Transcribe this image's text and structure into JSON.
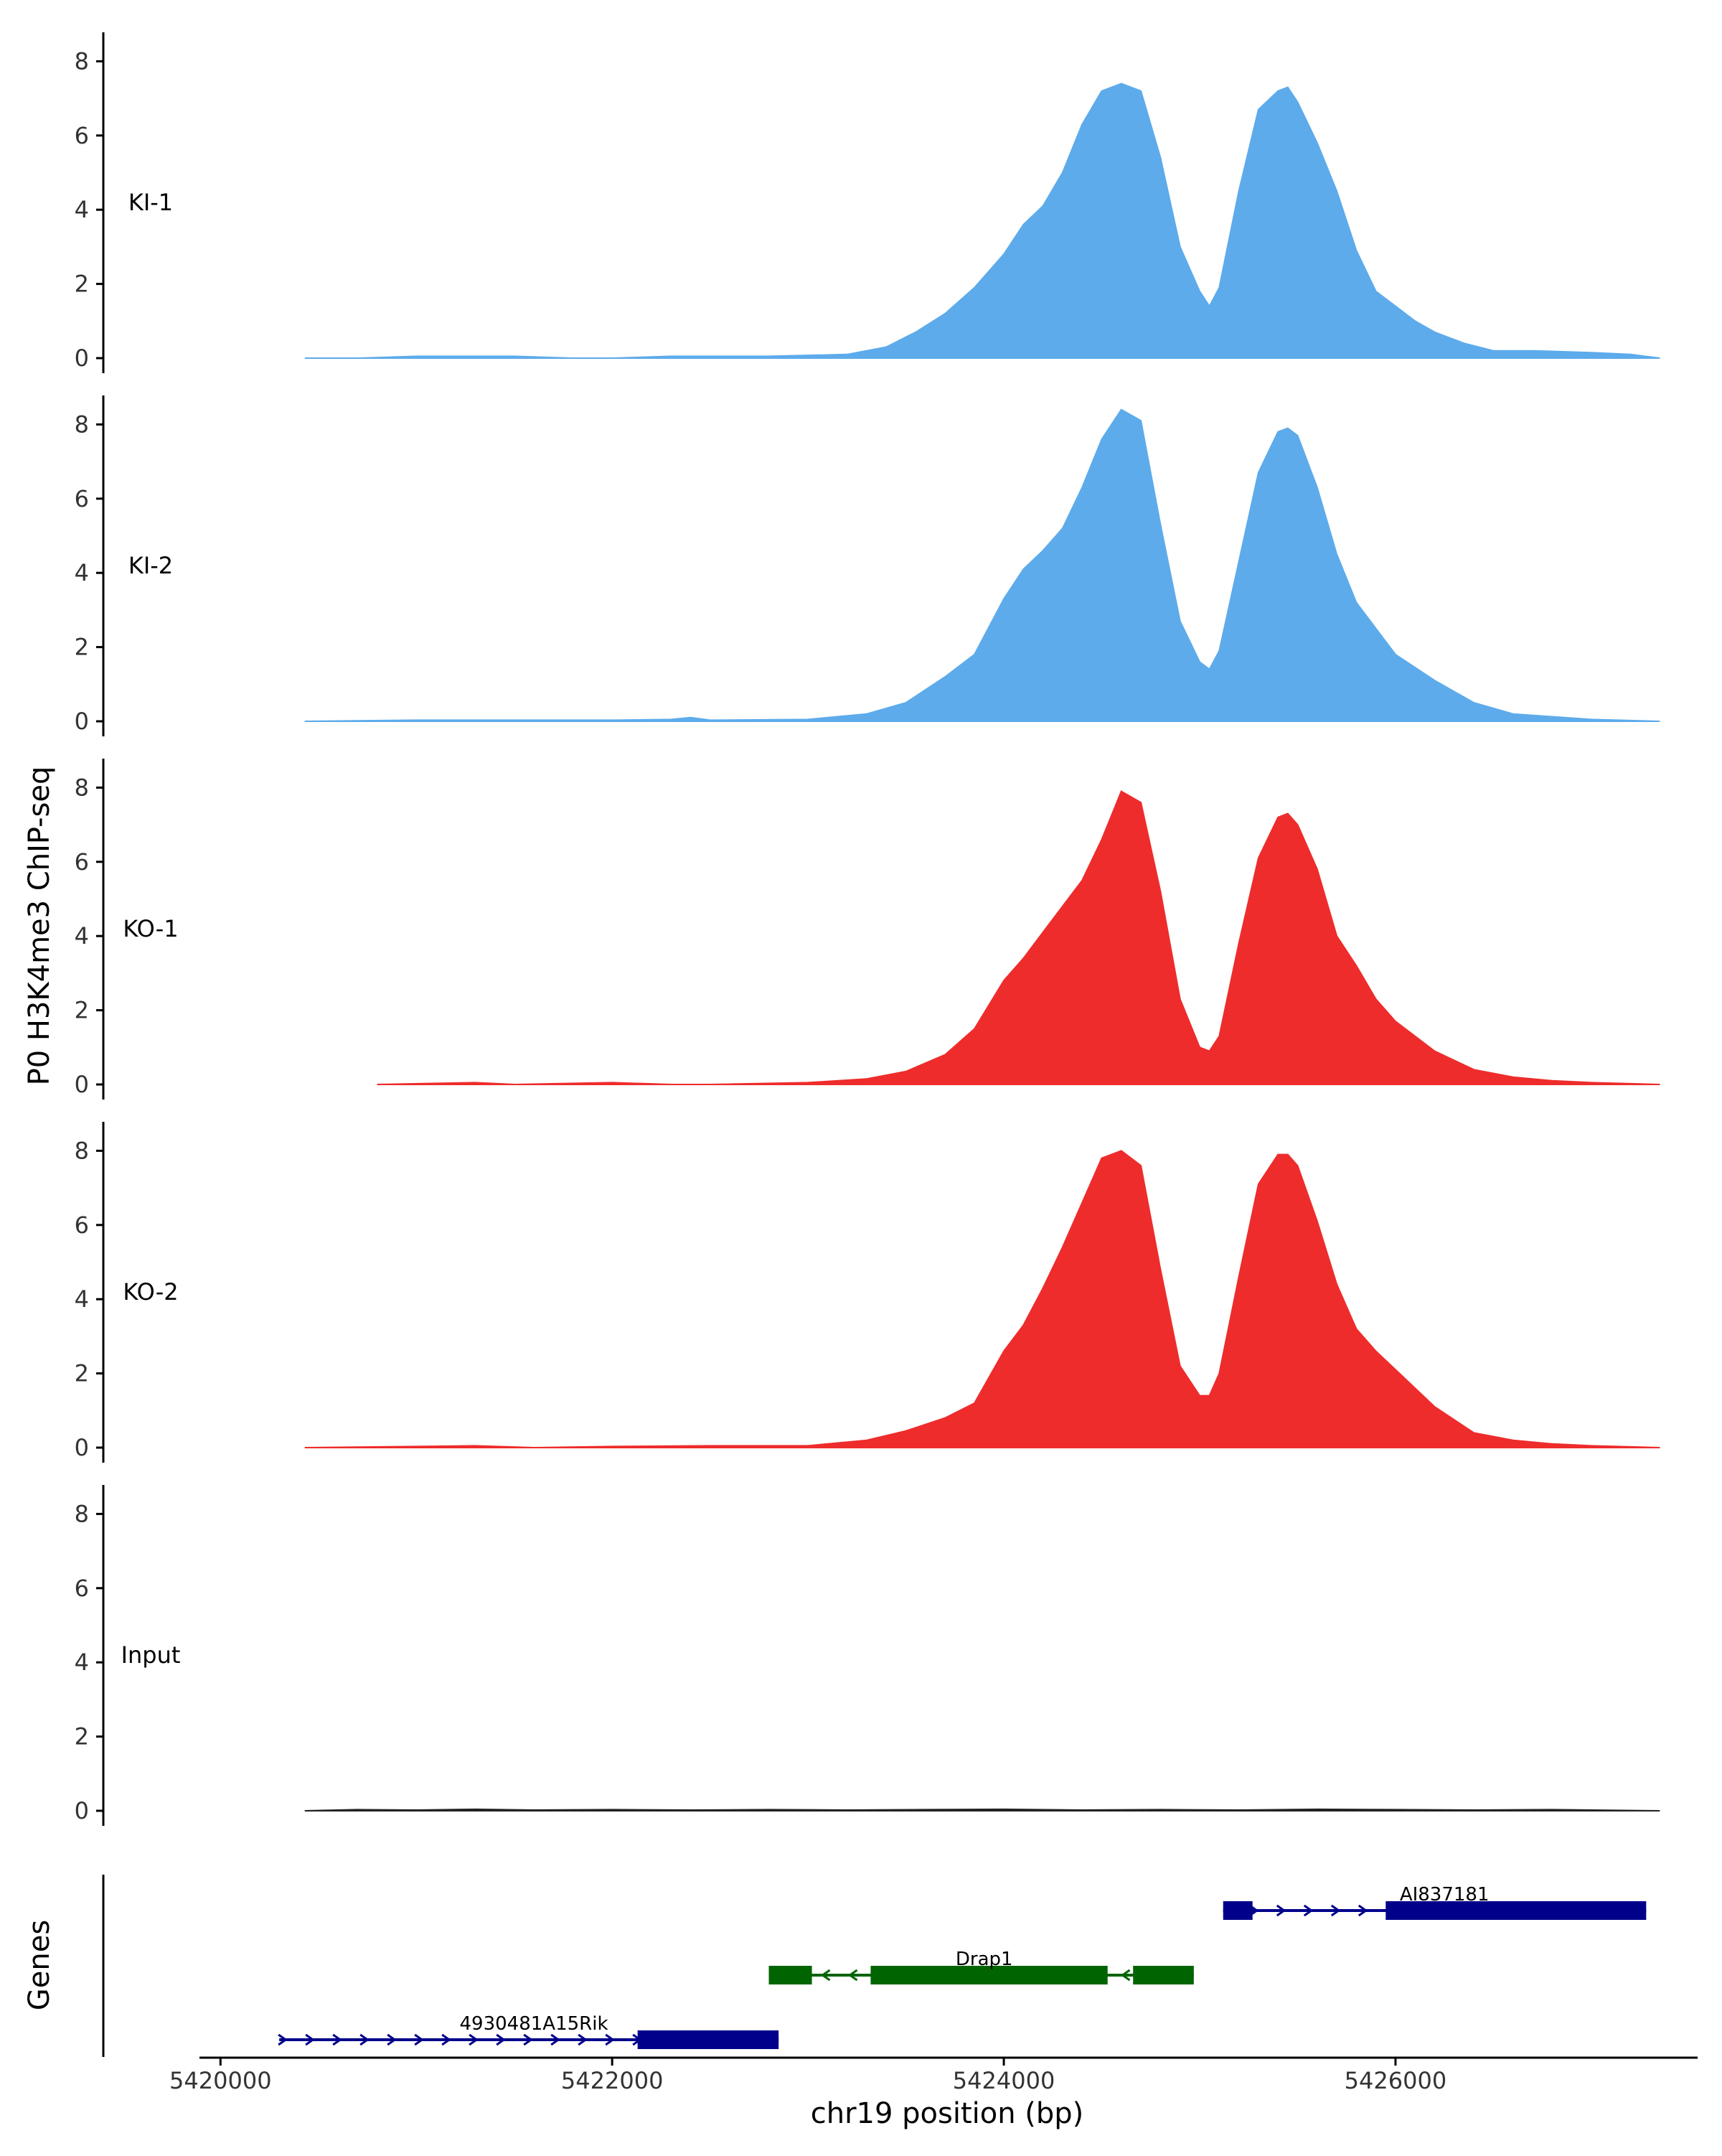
{
  "chart_data": {
    "type": "area",
    "ylabel": "P0 H3K4me3 ChIP-seq",
    "xlabel": "chr19 position (bp)",
    "ylim": [
      0,
      8.8
    ],
    "y_ticks": [
      "0",
      "2",
      "4",
      "6",
      "8"
    ],
    "x_range": [
      5419900,
      5427550
    ],
    "x_ticks": [
      {
        "value": 5420000,
        "label": "5420000"
      },
      {
        "value": 5422000,
        "label": "5422000"
      },
      {
        "value": 5424000,
        "label": "5424000"
      },
      {
        "value": 5426000,
        "label": "5426000"
      }
    ],
    "colors": {
      "KI": "#5dabeb",
      "KO": "#ee2c2c",
      "Input": "#222222",
      "gene_plus": "#00008b",
      "gene_minus": "#006400",
      "axis": "#000000"
    },
    "tracks": [
      {
        "name": "KI-1",
        "color": "#5dabeb",
        "x": [
          5420430,
          5420600,
          5420700,
          5421000,
          5421500,
          5421800,
          5422000,
          5422300,
          5422800,
          5423200,
          5423400,
          5423550,
          5423700,
          5423850,
          5424000,
          5424100,
          5424200,
          5424300,
          5424400,
          5424500,
          5424600,
          5424700,
          5424800,
          5424900,
          5425000,
          5425050,
          5425100,
          5425200,
          5425300,
          5425400,
          5425450,
          5425500,
          5425600,
          5425700,
          5425800,
          5425900,
          5426000,
          5426100,
          5426200,
          5426350,
          5426500,
          5426700,
          5427000,
          5427200,
          5427350
        ],
        "y": [
          0,
          0,
          0,
          0.05,
          0.05,
          0,
          0,
          0.05,
          0.05,
          0.1,
          0.3,
          0.7,
          1.2,
          1.9,
          2.8,
          3.6,
          4.1,
          5.0,
          6.3,
          7.2,
          7.4,
          7.2,
          5.4,
          3.0,
          1.8,
          1.4,
          1.9,
          4.5,
          6.7,
          7.2,
          7.3,
          6.9,
          5.8,
          4.5,
          2.9,
          1.8,
          1.4,
          1.0,
          0.7,
          0.4,
          0.2,
          0.2,
          0.15,
          0.1,
          0
        ],
        "label_value": 4.2
      },
      {
        "name": "KI-2",
        "color": "#5dabeb",
        "x": [
          5420430,
          5421000,
          5422000,
          5422300,
          5422400,
          5422500,
          5423000,
          5423300,
          5423500,
          5423700,
          5423850,
          5424000,
          5424100,
          5424200,
          5424300,
          5424400,
          5424500,
          5424600,
          5424700,
          5424800,
          5424900,
          5425000,
          5425050,
          5425100,
          5425200,
          5425300,
          5425400,
          5425450,
          5425500,
          5425600,
          5425700,
          5425800,
          5426000,
          5426200,
          5426400,
          5426600,
          5427000,
          5427350
        ],
        "y": [
          0,
          0.03,
          0.03,
          0.05,
          0.1,
          0.03,
          0.05,
          0.2,
          0.5,
          1.2,
          1.8,
          3.3,
          4.1,
          4.6,
          5.2,
          6.3,
          7.6,
          8.4,
          8.1,
          5.3,
          2.7,
          1.6,
          1.4,
          1.9,
          4.3,
          6.7,
          7.8,
          7.9,
          7.7,
          6.3,
          4.5,
          3.2,
          1.8,
          1.1,
          0.5,
          0.2,
          0.05,
          0
        ],
        "label_value": 4.2
      },
      {
        "name": "KO-1",
        "color": "#ee2c2c",
        "x": [
          5420800,
          5421300,
          5421500,
          5422000,
          5422300,
          5422500,
          5423000,
          5423300,
          5423500,
          5423700,
          5423850,
          5424000,
          5424100,
          5424200,
          5424300,
          5424400,
          5424500,
          5424600,
          5424700,
          5424800,
          5424900,
          5425000,
          5425050,
          5425100,
          5425200,
          5425300,
          5425400,
          5425450,
          5425500,
          5425600,
          5425700,
          5425800,
          5425900,
          5426000,
          5426200,
          5426400,
          5426600,
          5426800,
          5427000,
          5427350
        ],
        "y": [
          0,
          0.05,
          0,
          0.05,
          0,
          0,
          0.05,
          0.15,
          0.35,
          0.8,
          1.5,
          2.8,
          3.4,
          4.1,
          4.8,
          5.5,
          6.6,
          7.9,
          7.6,
          5.2,
          2.3,
          1.0,
          0.9,
          1.3,
          3.8,
          6.1,
          7.2,
          7.3,
          7.0,
          5.8,
          4.0,
          3.2,
          2.3,
          1.7,
          0.9,
          0.4,
          0.2,
          0.1,
          0.05,
          0
        ],
        "label_value": 4.2
      },
      {
        "name": "KO-2",
        "color": "#ee2c2c",
        "x": [
          5420430,
          5421000,
          5421300,
          5421600,
          5422000,
          5422500,
          5423000,
          5423300,
          5423500,
          5423700,
          5423850,
          5424000,
          5424100,
          5424200,
          5424300,
          5424400,
          5424500,
          5424600,
          5424700,
          5424800,
          5424900,
          5425000,
          5425050,
          5425100,
          5425200,
          5425300,
          5425400,
          5425450,
          5425500,
          5425600,
          5425700,
          5425800,
          5425900,
          5426000,
          5426200,
          5426400,
          5426600,
          5426800,
          5427000,
          5427350
        ],
        "y": [
          0,
          0.03,
          0.05,
          0,
          0.03,
          0.05,
          0.05,
          0.2,
          0.45,
          0.8,
          1.2,
          2.6,
          3.3,
          4.3,
          5.4,
          6.6,
          7.8,
          8.0,
          7.6,
          4.8,
          2.2,
          1.4,
          1.4,
          2.0,
          4.6,
          7.1,
          7.9,
          7.9,
          7.6,
          6.1,
          4.4,
          3.2,
          2.6,
          2.1,
          1.1,
          0.4,
          0.2,
          0.1,
          0.05,
          0
        ],
        "label_value": 4.2
      },
      {
        "name": "Input",
        "color": "#222222",
        "x": [
          5420430,
          5420700,
          5421000,
          5421300,
          5421600,
          5422000,
          5422400,
          5422800,
          5423200,
          5423600,
          5424000,
          5424400,
          5424800,
          5425200,
          5425600,
          5426000,
          5426400,
          5426800,
          5427350
        ],
        "y": [
          0,
          0.03,
          0.02,
          0.04,
          0.02,
          0.03,
          0.02,
          0.03,
          0.02,
          0.03,
          0.04,
          0.02,
          0.03,
          0.02,
          0.04,
          0.03,
          0.02,
          0.03,
          0
        ],
        "label_value": 4.2
      }
    ],
    "genes_panel": {
      "label": "Genes",
      "genes": [
        {
          "name": "AI837181",
          "strand": "+",
          "color": "#00008b",
          "row": 0,
          "start": 5425120,
          "end": 5427280,
          "exons": [
            [
              5425120,
              5425270
            ],
            [
              5425950,
              5427280
            ]
          ],
          "label_x": 5426250
        },
        {
          "name": "Drap1",
          "strand": "-",
          "color": "#006400",
          "row": 1,
          "start": 5422800,
          "end": 5424970,
          "exons": [
            [
              5422800,
              5423020
            ],
            [
              5423320,
              5424530
            ],
            [
              5424660,
              5424970
            ]
          ],
          "label_x": 5423900
        },
        {
          "name": "4930481A15Rik",
          "strand": "+",
          "color": "#00008b",
          "row": 2,
          "start": 5420300,
          "end": 5422850,
          "exons": [
            [
              5422130,
              5422850
            ]
          ],
          "label_x": 5421600
        }
      ]
    }
  }
}
